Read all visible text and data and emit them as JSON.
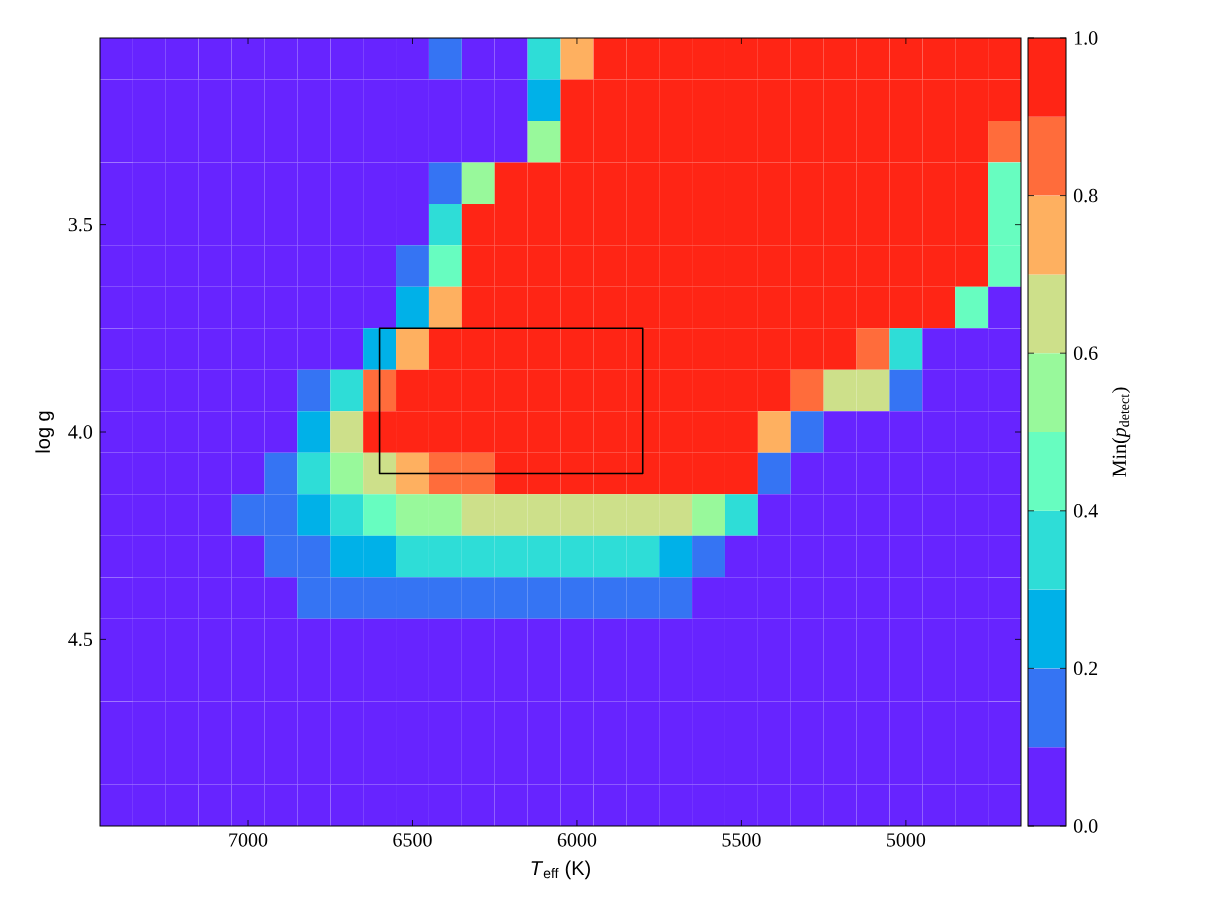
{
  "chart_data": {
    "type": "heatmap",
    "xlabel": "*T*$_{eff}$ (K)",
    "ylabel": "log g",
    "clabel": "Min(*p*$_{detect}$)",
    "categories": [
      null,
      null,
      null,
      null,
      "7000",
      null,
      null,
      null,
      null,
      "6500",
      null,
      null,
      null,
      null,
      "6000",
      null,
      null,
      null,
      null,
      "5500",
      null,
      null,
      null,
      null,
      "5000",
      null,
      null,
      null
    ],
    "y_categories": [
      null,
      null,
      null,
      null,
      "3.5",
      null,
      null,
      null,
      null,
      "4.0",
      null,
      null,
      null,
      null,
      "4.5",
      null,
      null,
      null,
      null
    ],
    "cells": [
      [
        0,
        0,
        0,
        0,
        0,
        0,
        0,
        0,
        0,
        0,
        0.15,
        0,
        0,
        0.35,
        0.75,
        1,
        1,
        1,
        1,
        1,
        1,
        1,
        1,
        1,
        1,
        1,
        1,
        1
      ],
      [
        0,
        0,
        0,
        0,
        0,
        0,
        0,
        0,
        0,
        0,
        0,
        0,
        0,
        0.25,
        1,
        1,
        1,
        1,
        1,
        1,
        1,
        1,
        1,
        1,
        1,
        1,
        1,
        1
      ],
      [
        0,
        0,
        0,
        0,
        0,
        0,
        0,
        0,
        0,
        0,
        0,
        0,
        0,
        0.55,
        1,
        1,
        1,
        1,
        1,
        1,
        1,
        1,
        1,
        1,
        1,
        1,
        1,
        0.85
      ],
      [
        0,
        0,
        0,
        0,
        0,
        0,
        0,
        0,
        0,
        0,
        0.15,
        0.55,
        1,
        1,
        1,
        1,
        1,
        1,
        1,
        1,
        1,
        1,
        1,
        1,
        1,
        1,
        1,
        0.45
      ],
      [
        0,
        0,
        0,
        0,
        0,
        0,
        0,
        0,
        0,
        0,
        0.35,
        1,
        1,
        1,
        1,
        1,
        1,
        1,
        1,
        1,
        1,
        1,
        1,
        1,
        1,
        1,
        1,
        0.45
      ],
      [
        0,
        0,
        0,
        0,
        0,
        0,
        0,
        0,
        0,
        0.15,
        0.45,
        1,
        1,
        1,
        1,
        1,
        1,
        1,
        1,
        1,
        1,
        1,
        1,
        1,
        1,
        1,
        1,
        0.45
      ],
      [
        0,
        0,
        0,
        0,
        0,
        0,
        0,
        0,
        0,
        0.25,
        0.75,
        1,
        1,
        1,
        1,
        1,
        1,
        1,
        1,
        1,
        1,
        1,
        1,
        1,
        1,
        1,
        0.45,
        0
      ],
      [
        0,
        0,
        0,
        0,
        0,
        0,
        0,
        0,
        0.25,
        0.75,
        1,
        1,
        1,
        1,
        1,
        1,
        1,
        1,
        1,
        1,
        1,
        1,
        1,
        0.85,
        0.35,
        0,
        0,
        0
      ],
      [
        0,
        0,
        0,
        0,
        0,
        0,
        0.15,
        0.35,
        0.85,
        1,
        1,
        1,
        1,
        1,
        1,
        1,
        1,
        1,
        1,
        1,
        1,
        0.85,
        0.65,
        0.65,
        0.15,
        0,
        0,
        0
      ],
      [
        0,
        0,
        0,
        0,
        0,
        0,
        0.25,
        0.65,
        1,
        1,
        1,
        1,
        1,
        1,
        1,
        1,
        1,
        1,
        1,
        1,
        0.75,
        0.15,
        0,
        0,
        0,
        0,
        0,
        0
      ],
      [
        0,
        0,
        0,
        0,
        0,
        0.15,
        0.35,
        0.55,
        0.65,
        0.75,
        0.85,
        0.85,
        1,
        1,
        1,
        1,
        1,
        1,
        1,
        1,
        0.15,
        0,
        0,
        0,
        0,
        0,
        0,
        0
      ],
      [
        0,
        0,
        0,
        0,
        0.15,
        0.15,
        0.25,
        0.35,
        0.45,
        0.55,
        0.55,
        0.65,
        0.65,
        0.65,
        0.65,
        0.65,
        0.65,
        0.65,
        0.55,
        0.35,
        0,
        0,
        0,
        0,
        0,
        0,
        0,
        0
      ],
      [
        0,
        0,
        0,
        0,
        0,
        0.15,
        0.15,
        0.25,
        0.25,
        0.35,
        0.35,
        0.35,
        0.35,
        0.35,
        0.35,
        0.35,
        0.35,
        0.25,
        0.15,
        0,
        0,
        0,
        0,
        0,
        0,
        0,
        0,
        0
      ],
      [
        0,
        0,
        0,
        0,
        0,
        0,
        0.15,
        0.15,
        0.15,
        0.15,
        0.15,
        0.15,
        0.15,
        0.15,
        0.15,
        0.15,
        0.15,
        0.15,
        0,
        0,
        0,
        0,
        0,
        0,
        0,
        0,
        0,
        0
      ],
      [
        0,
        0,
        0,
        0,
        0,
        0,
        0,
        0,
        0,
        0,
        0,
        0,
        0,
        0,
        0,
        0,
        0,
        0,
        0,
        0,
        0,
        0,
        0,
        0,
        0,
        0,
        0,
        0
      ],
      [
        0,
        0,
        0,
        0,
        0,
        0,
        0,
        0,
        0,
        0,
        0,
        0,
        0,
        0,
        0,
        0,
        0,
        0,
        0,
        0,
        0,
        0,
        0,
        0,
        0,
        0,
        0,
        0
      ],
      [
        0,
        0,
        0,
        0,
        0,
        0,
        0,
        0,
        0,
        0,
        0,
        0,
        0,
        0,
        0,
        0,
        0,
        0,
        0,
        0,
        0,
        0,
        0,
        0,
        0,
        0,
        0,
        0
      ],
      [
        0,
        0,
        0,
        0,
        0,
        0,
        0,
        0,
        0,
        0,
        0,
        0,
        0,
        0,
        0,
        0,
        0,
        0,
        0,
        0,
        0,
        0,
        0,
        0,
        0,
        0,
        0,
        0
      ],
      [
        0,
        0,
        0,
        0,
        0,
        0,
        0,
        0,
        0,
        0,
        0,
        0,
        0,
        0,
        0,
        0,
        0,
        0,
        0,
        0,
        0,
        0,
        0,
        0,
        0,
        0,
        0,
        0
      ]
    ],
    "clim": [
      0,
      1
    ],
    "cticks": [
      {
        "value": 0,
        "label": "0.0"
      },
      0.2,
      0.4,
      0.6,
      0.8,
      {
        "value": 1,
        "label": "1.0"
      }
    ]
  }
}
